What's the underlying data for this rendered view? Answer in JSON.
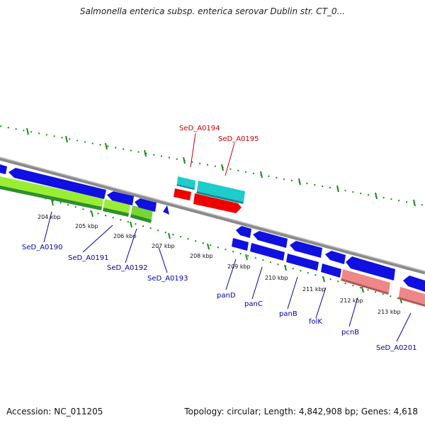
{
  "title": "Salmonella enterica subsp. enterica serovar Dublin str. CT_0...",
  "footer": {
    "accession": "Accession: NC_011205",
    "topology": "Topology: circular; Length: 4,842,908 bp; Genes: 4,618"
  },
  "colors": {
    "backbone": "#8a8a8a",
    "tick_dot": "#1a8a1a",
    "gene_blue": "#1010e0",
    "gene_cyan": "#1ecccc",
    "gene_red": "#ee0000",
    "gene_pink": "#ee8888",
    "gene_green_light": "#99ee33",
    "gene_green_dark": "#2f8f2f",
    "label_blue": "#0000aa",
    "label_red": "#cc0000"
  },
  "scale": {
    "unit": "kbp",
    "ticks": [
      {
        "text": "204 kbp"
      },
      {
        "text": "205 kbp"
      },
      {
        "text": "206 kbp"
      },
      {
        "text": "207 kbp"
      },
      {
        "text": "208 kbp"
      },
      {
        "text": "209 kbp"
      },
      {
        "text": "210 kbp"
      },
      {
        "text": "211 kbp"
      },
      {
        "text": "212 kbp"
      },
      {
        "text": "213 kbp"
      }
    ]
  },
  "gene_labels": [
    {
      "id": "SeD_A0190",
      "text": "SeD_A0190",
      "color": "blue"
    },
    {
      "id": "SeD_A0191",
      "text": "SeD_A0191",
      "color": "blue"
    },
    {
      "id": "SeD_A0192",
      "text": "SeD_A0192",
      "color": "blue"
    },
    {
      "id": "SeD_A0193",
      "text": "SeD_A0193",
      "color": "blue"
    },
    {
      "id": "SeD_A0194",
      "text": "SeD_A0194",
      "color": "red"
    },
    {
      "id": "SeD_A0195",
      "text": "SeD_A0195",
      "color": "red"
    },
    {
      "id": "panD",
      "text": "panD",
      "color": "blue"
    },
    {
      "id": "panC",
      "text": "panC",
      "color": "blue"
    },
    {
      "id": "panB",
      "text": "panB",
      "color": "blue"
    },
    {
      "id": "folK",
      "text": "folK",
      "color": "blue"
    },
    {
      "id": "pcnB",
      "text": "pcnB",
      "color": "blue"
    },
    {
      "id": "SeD_A0201",
      "text": "SeD_A0201",
      "color": "blue"
    }
  ]
}
